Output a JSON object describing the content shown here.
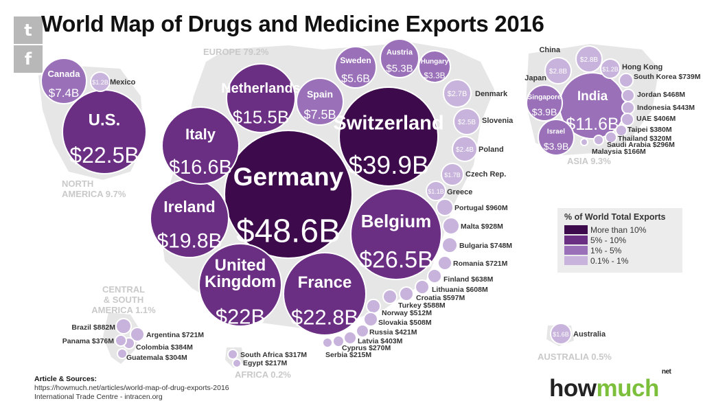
{
  "share": {
    "twitter_icon": "t",
    "facebook_icon": "f"
  },
  "title": "World Map of Drugs and Medicine Exports 2016",
  "legend": {
    "title": "% of World Total Exports",
    "items": [
      {
        "label": "More than 10%",
        "color": "#3d0b4c"
      },
      {
        "label": "5% - 10%",
        "color": "#6a2e83"
      },
      {
        "label": "1% - 5%",
        "color": "#9a71b9"
      },
      {
        "label": "0.1% - 1%",
        "color": "#c7b3db"
      }
    ]
  },
  "sources": {
    "heading": "Article & Sources:",
    "lines": [
      "https://howmuch.net/articles/world-map-of-drug-exports-2016",
      "International Trade Centre - intracen.org"
    ]
  },
  "logo": {
    "part1": "how",
    "part2": "much",
    "suffix": "net"
  },
  "chart_data": {
    "type": "bubble",
    "unit": "USD exports 2016",
    "regions": [
      {
        "name": "EUROPE",
        "share": "79.2%"
      },
      {
        "name": "NORTH AMERICA",
        "share": "9.7%"
      },
      {
        "name": "ASIA",
        "share": "9.3%"
      },
      {
        "name": "CENTRAL & SOUTH AMERICA",
        "share": "1.1%"
      },
      {
        "name": "AFRICA",
        "share": "0.2%"
      },
      {
        "name": "AUSTRALIA",
        "share": "0.5%"
      }
    ],
    "countries": [
      {
        "name": "Germany",
        "label": "$48.6B",
        "value_usd_b": 48.6,
        "tier": 0
      },
      {
        "name": "Switzerland",
        "label": "$39.9B",
        "value_usd_b": 39.9,
        "tier": 0
      },
      {
        "name": "Belgium",
        "label": "$26.5B",
        "value_usd_b": 26.5,
        "tier": 1
      },
      {
        "name": "France",
        "label": "$22.8B",
        "value_usd_b": 22.8,
        "tier": 1
      },
      {
        "name": "U.S.",
        "label": "$22.5B",
        "value_usd_b": 22.5,
        "tier": 1
      },
      {
        "name": "United Kingdom",
        "label": "$22B",
        "value_usd_b": 22.0,
        "tier": 1
      },
      {
        "name": "Ireland",
        "label": "$19.8B",
        "value_usd_b": 19.8,
        "tier": 1
      },
      {
        "name": "Italy",
        "label": "$16.6B",
        "value_usd_b": 16.6,
        "tier": 1
      },
      {
        "name": "Netherlands",
        "label": "$15.5B",
        "value_usd_b": 15.5,
        "tier": 1
      },
      {
        "name": "India",
        "label": "$11.6B",
        "value_usd_b": 11.6,
        "tier": 2
      },
      {
        "name": "Spain",
        "label": "$7.5B",
        "value_usd_b": 7.5,
        "tier": 2
      },
      {
        "name": "Canada",
        "label": "$7.4B",
        "value_usd_b": 7.4,
        "tier": 2
      },
      {
        "name": "Sweden",
        "label": "$5.6B",
        "value_usd_b": 5.6,
        "tier": 2
      },
      {
        "name": "Austria",
        "label": "$5.3B",
        "value_usd_b": 5.3,
        "tier": 2
      },
      {
        "name": "Singapore",
        "label": "$3.9B",
        "value_usd_b": 3.9,
        "tier": 2
      },
      {
        "name": "Israel",
        "label": "$3.9B",
        "value_usd_b": 3.9,
        "tier": 2
      },
      {
        "name": "Hungary",
        "label": "$3.3B",
        "value_usd_b": 3.3,
        "tier": 2
      },
      {
        "name": "China",
        "label": "$2.8B",
        "value_usd_b": 2.8,
        "tier": 3
      },
      {
        "name": "Japan",
        "label": "$2.8B",
        "value_usd_b": 2.8,
        "tier": 3
      },
      {
        "name": "Denmark",
        "label": "$2.7B",
        "value_usd_b": 2.7,
        "tier": 3
      },
      {
        "name": "Slovenia",
        "label": "$2.5B",
        "value_usd_b": 2.5,
        "tier": 3
      },
      {
        "name": "Poland",
        "label": "$2.4B",
        "value_usd_b": 2.4,
        "tier": 3
      },
      {
        "name": "Czech Rep.",
        "label": "$1.7B",
        "value_usd_b": 1.7,
        "tier": 3
      },
      {
        "name": "Mexico",
        "label": "$1.2B",
        "value_usd_b": 1.2,
        "tier": 3
      },
      {
        "name": "Hong Kong",
        "label": "$1.2B",
        "value_usd_b": 1.2,
        "tier": 3
      },
      {
        "name": "Greece",
        "label": "$1.1B",
        "value_usd_b": 1.1,
        "tier": 3
      },
      {
        "name": "Australia",
        "label": "$1.6B",
        "value_usd_b": 1.6,
        "tier": 3
      },
      {
        "name": "Portugal",
        "label": "$960M",
        "value_usd_b": 0.96,
        "tier": 3
      },
      {
        "name": "Malta",
        "label": "$928M",
        "value_usd_b": 0.928,
        "tier": 3
      },
      {
        "name": "Brazil",
        "label": "$882M",
        "value_usd_b": 0.882,
        "tier": 3
      },
      {
        "name": "Bulgaria",
        "label": "$748M",
        "value_usd_b": 0.748,
        "tier": 3
      },
      {
        "name": "South Korea",
        "label": "$739M",
        "value_usd_b": 0.739,
        "tier": 3
      },
      {
        "name": "Romania",
        "label": "$721M",
        "value_usd_b": 0.721,
        "tier": 3
      },
      {
        "name": "Argentina",
        "label": "$721M",
        "value_usd_b": 0.721,
        "tier": 3
      },
      {
        "name": "Finland",
        "label": "$638M",
        "value_usd_b": 0.638,
        "tier": 3
      },
      {
        "name": "Lithuania",
        "label": "$608M",
        "value_usd_b": 0.608,
        "tier": 3
      },
      {
        "name": "Croatia",
        "label": "$597M",
        "value_usd_b": 0.597,
        "tier": 3
      },
      {
        "name": "Turkey",
        "label": "$588M",
        "value_usd_b": 0.588,
        "tier": 3
      },
      {
        "name": "Norway",
        "label": "$512M",
        "value_usd_b": 0.512,
        "tier": 3
      },
      {
        "name": "Slovakia",
        "label": "$508M",
        "value_usd_b": 0.508,
        "tier": 3
      },
      {
        "name": "Jordan",
        "label": "$468M",
        "value_usd_b": 0.468,
        "tier": 3
      },
      {
        "name": "Indonesia",
        "label": "$443M",
        "value_usd_b": 0.443,
        "tier": 3
      },
      {
        "name": "Russia",
        "label": "$421M",
        "value_usd_b": 0.421,
        "tier": 3
      },
      {
        "name": "UAE",
        "label": "$406M",
        "value_usd_b": 0.406,
        "tier": 3
      },
      {
        "name": "Latvia",
        "label": "$403M",
        "value_usd_b": 0.403,
        "tier": 3
      },
      {
        "name": "Colombia",
        "label": "$384M",
        "value_usd_b": 0.384,
        "tier": 3
      },
      {
        "name": "Taipei",
        "label": "$380M",
        "value_usd_b": 0.38,
        "tier": 3
      },
      {
        "name": "Panama",
        "label": "$376M",
        "value_usd_b": 0.376,
        "tier": 3
      },
      {
        "name": "Thailand",
        "label": "$320M",
        "value_usd_b": 0.32,
        "tier": 3
      },
      {
        "name": "South Africa",
        "label": "$317M",
        "value_usd_b": 0.317,
        "tier": 3
      },
      {
        "name": "Guatemala",
        "label": "$304M",
        "value_usd_b": 0.304,
        "tier": 3
      },
      {
        "name": "Saudi Arabia",
        "label": "$296M",
        "value_usd_b": 0.296,
        "tier": 3
      },
      {
        "name": "Cyprus",
        "label": "$270M",
        "value_usd_b": 0.27,
        "tier": 3
      },
      {
        "name": "Egypt",
        "label": "$217M",
        "value_usd_b": 0.217,
        "tier": 3
      },
      {
        "name": "Serbia",
        "label": "$215M",
        "value_usd_b": 0.215,
        "tier": 3
      },
      {
        "name": "Malaysia",
        "label": "$166M",
        "value_usd_b": 0.166,
        "tier": 3
      }
    ]
  }
}
